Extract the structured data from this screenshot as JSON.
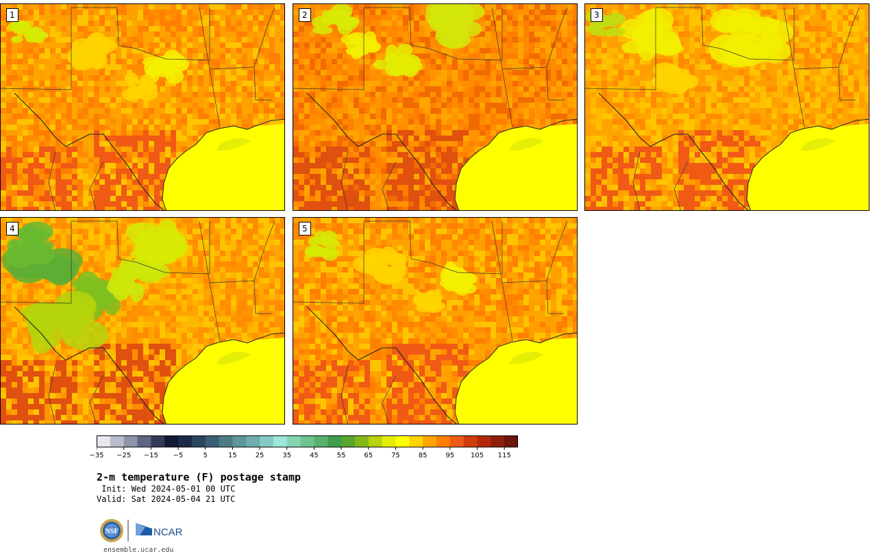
{
  "panels": [
    {
      "label": "1",
      "style": "hot"
    },
    {
      "label": "2",
      "style": "hotter"
    },
    {
      "label": "3",
      "style": "warm"
    },
    {
      "label": "4",
      "style": "cool"
    },
    {
      "label": "5",
      "style": "hot"
    }
  ],
  "colorbar": {
    "colors": [
      "#e6e8ee",
      "#b8bccb",
      "#8f94a8",
      "#5f6683",
      "#333b5a",
      "#111a33",
      "#1b2a48",
      "#2a4460",
      "#3a5e75",
      "#4d7c86",
      "#5f9698",
      "#70adad",
      "#86c9c4",
      "#9de6dc",
      "#85d6b0",
      "#6cc48e",
      "#55b16d",
      "#3f9e4c",
      "#5aa62c",
      "#83b81a",
      "#b7d30c",
      "#e4ec02",
      "#ffff00",
      "#ffd400",
      "#ffa500",
      "#ff7f00",
      "#f05a14",
      "#d13c0c",
      "#b02a0a",
      "#8f1e0a",
      "#6e160c"
    ],
    "tick_labels": [
      "−35",
      "−25",
      "−15",
      "−5",
      "5",
      "15",
      "25",
      "35",
      "45",
      "55",
      "65",
      "75",
      "85",
      "95",
      "105",
      "115"
    ]
  },
  "title": "2-m temperature (F) postage stamp",
  "init_line": " Init: Wed 2024-05-01 00 UTC",
  "valid_line": "Valid: Sat 2024-05-04 21 UTC",
  "footer": {
    "nsf_logo": "NSF",
    "ncar_logo": "NCAR",
    "url": "ensemble.ucar.edu"
  }
}
